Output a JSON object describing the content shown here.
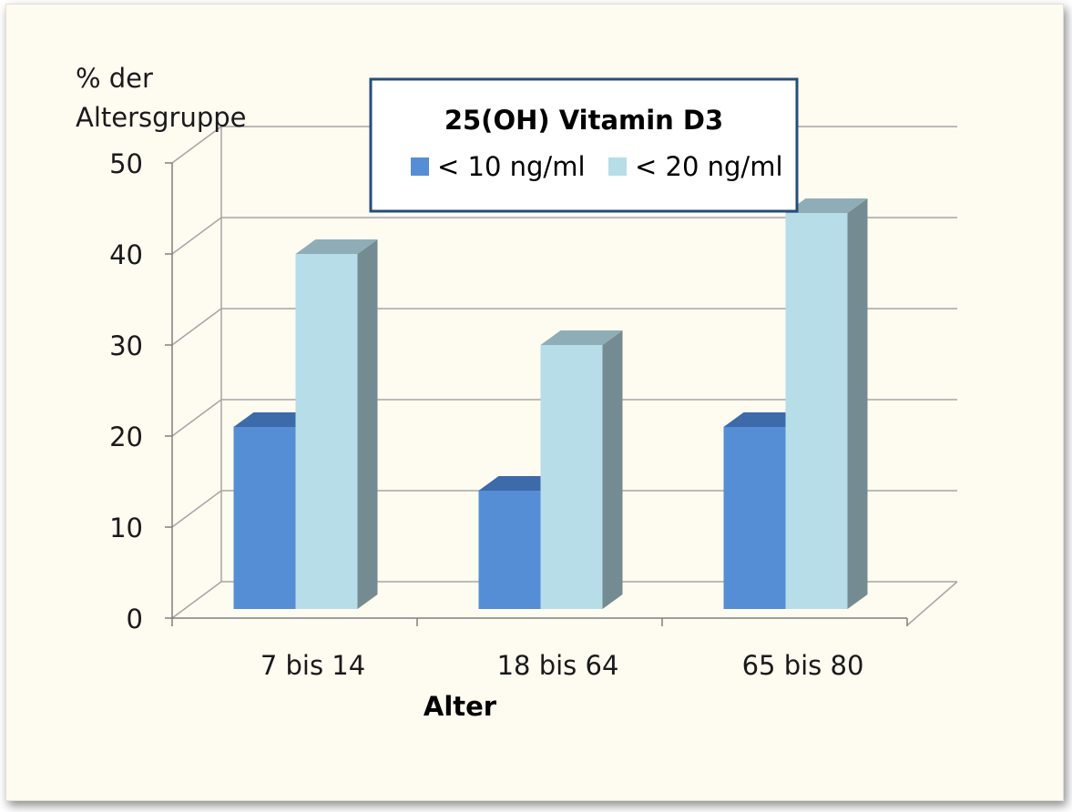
{
  "chart_data": {
    "type": "bar",
    "title": "25(OH) Vitamin D3",
    "xlabel": "Alter",
    "ylabel": [
      "% der",
      "Altersgruppe"
    ],
    "categories": [
      "7 bis 14",
      "18 bis 64",
      "65 bis 80"
    ],
    "series": [
      {
        "name": "< 10 ng/ml",
        "values": [
          20,
          13,
          20
        ],
        "color": "#558ed5"
      },
      {
        "name": "< 20 ng/ml",
        "values": [
          39,
          29,
          43.5
        ],
        "color": "#b7dde8"
      }
    ],
    "ylim": [
      0,
      50
    ],
    "yticks": [
      "0",
      "10",
      "20",
      "30",
      "40",
      "50"
    ],
    "grid": true,
    "legend_position": "top-center",
    "three_d": true
  },
  "colors": {
    "background": "#fefbf1",
    "gridline": "#a6a6a6",
    "series1": "#558ed5",
    "series1_top": "#3d6aa8",
    "series1_side": "#2f5a95",
    "series2": "#b7dde8",
    "series2_top": "#8fadb6",
    "series2_side": "#748c91",
    "legend_border": "#254d7b"
  }
}
